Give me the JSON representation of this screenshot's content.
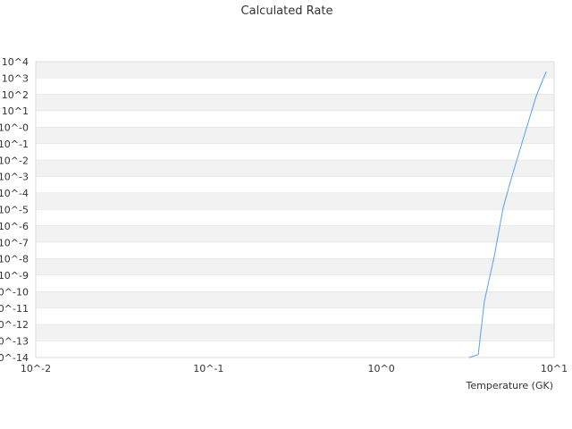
{
  "chart_data": {
    "type": "line",
    "title": "Calculated Rate",
    "xlabel": "Temperature (GK)",
    "ylabel": "",
    "x_scale": "log",
    "y_scale": "log",
    "xlim": [
      0.01,
      10
    ],
    "ylim": [
      1e-14,
      10000.0
    ],
    "x_ticks": [
      "10^-2",
      "10^-1",
      "10^0",
      "10^1"
    ],
    "y_ticks": [
      "10^4",
      "10^3",
      "10^2",
      "10^1",
      "10^-0",
      "10^-1",
      "10^-2",
      "10^-3",
      "10^-4",
      "10^-5",
      "10^-6",
      "10^-7",
      "10^-8",
      "10^-9",
      "10^-10",
      "10^-11",
      "10^-12",
      "10^-13",
      "10^-14"
    ],
    "grid": "horizontal alternating bands",
    "legend": "none",
    "line_color": "#5aa0f0",
    "series": [
      {
        "x": [
          3.23,
          3.64,
          3.95,
          4.5,
          5.08,
          5.65,
          6.44,
          7.89,
          9.0
        ],
        "log10_y": [
          -14,
          -13.82,
          -10.57,
          -7.85,
          -4.86,
          -3.12,
          -1.11,
          1.93,
          3.4
        ]
      }
    ]
  }
}
